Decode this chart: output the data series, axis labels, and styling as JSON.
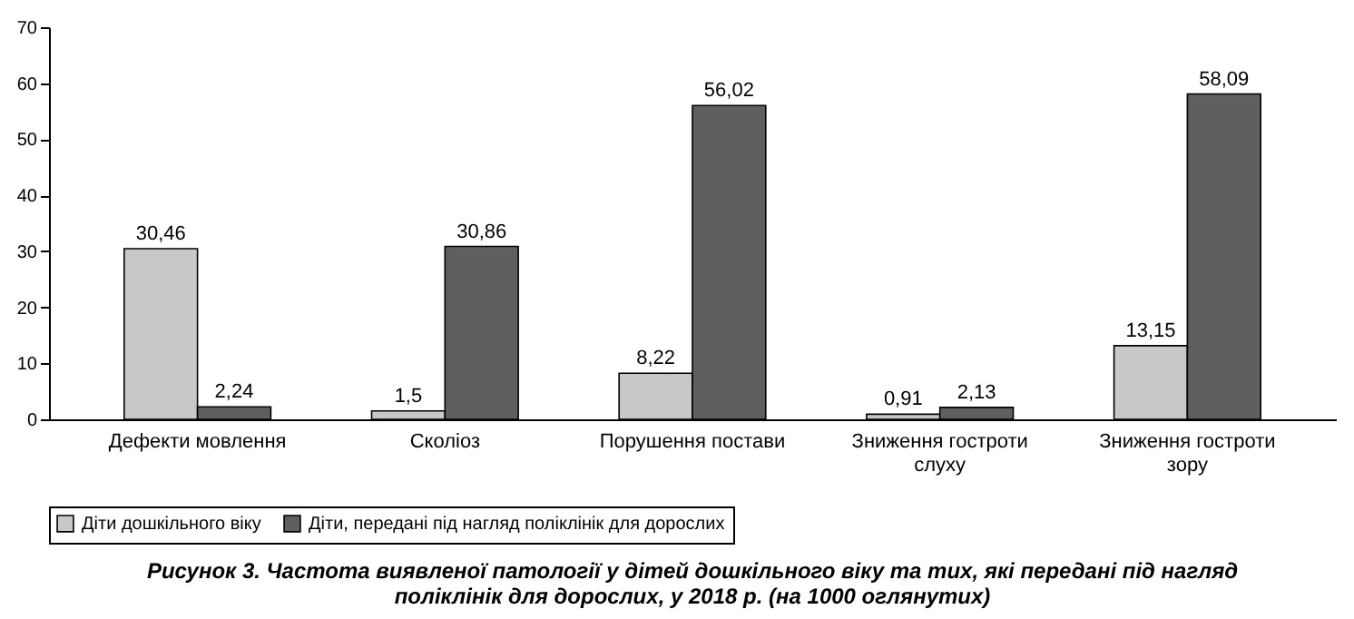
{
  "chart_data": {
    "type": "bar",
    "title": "Рисунок 3. Частота виявленої патології у дітей дошкільного віку та тих, які передані під нагляд поліклінік для дорослих, у 2018 р. (на 1000 оглянутих)",
    "categories": [
      "Дефекти мовлення",
      "Сколіоз",
      "Порушення постави",
      "Зниження гостроти слуху",
      "Зниження гостроти зору"
    ],
    "series": [
      {
        "name": "Діти дошкільного віку",
        "color": "#c8c8c8",
        "values": [
          30.46,
          1.5,
          8.22,
          0.91,
          13.15
        ],
        "value_labels": [
          "30,46",
          "1,5",
          "8,22",
          "0,91",
          "13,15"
        ]
      },
      {
        "name": "Діти, передані під нагляд поліклінік для дорослих",
        "color": "#5f5f5f",
        "values": [
          2.24,
          30.86,
          56.02,
          2.13,
          58.09
        ],
        "value_labels": [
          "2,24",
          "30,86",
          "56,02",
          "2,13",
          "58,09"
        ]
      }
    ],
    "ylim": [
      0,
      70
    ],
    "yticks": [
      0,
      10,
      20,
      30,
      40,
      50,
      60,
      70
    ],
    "grid": false,
    "legend": "bottom"
  }
}
